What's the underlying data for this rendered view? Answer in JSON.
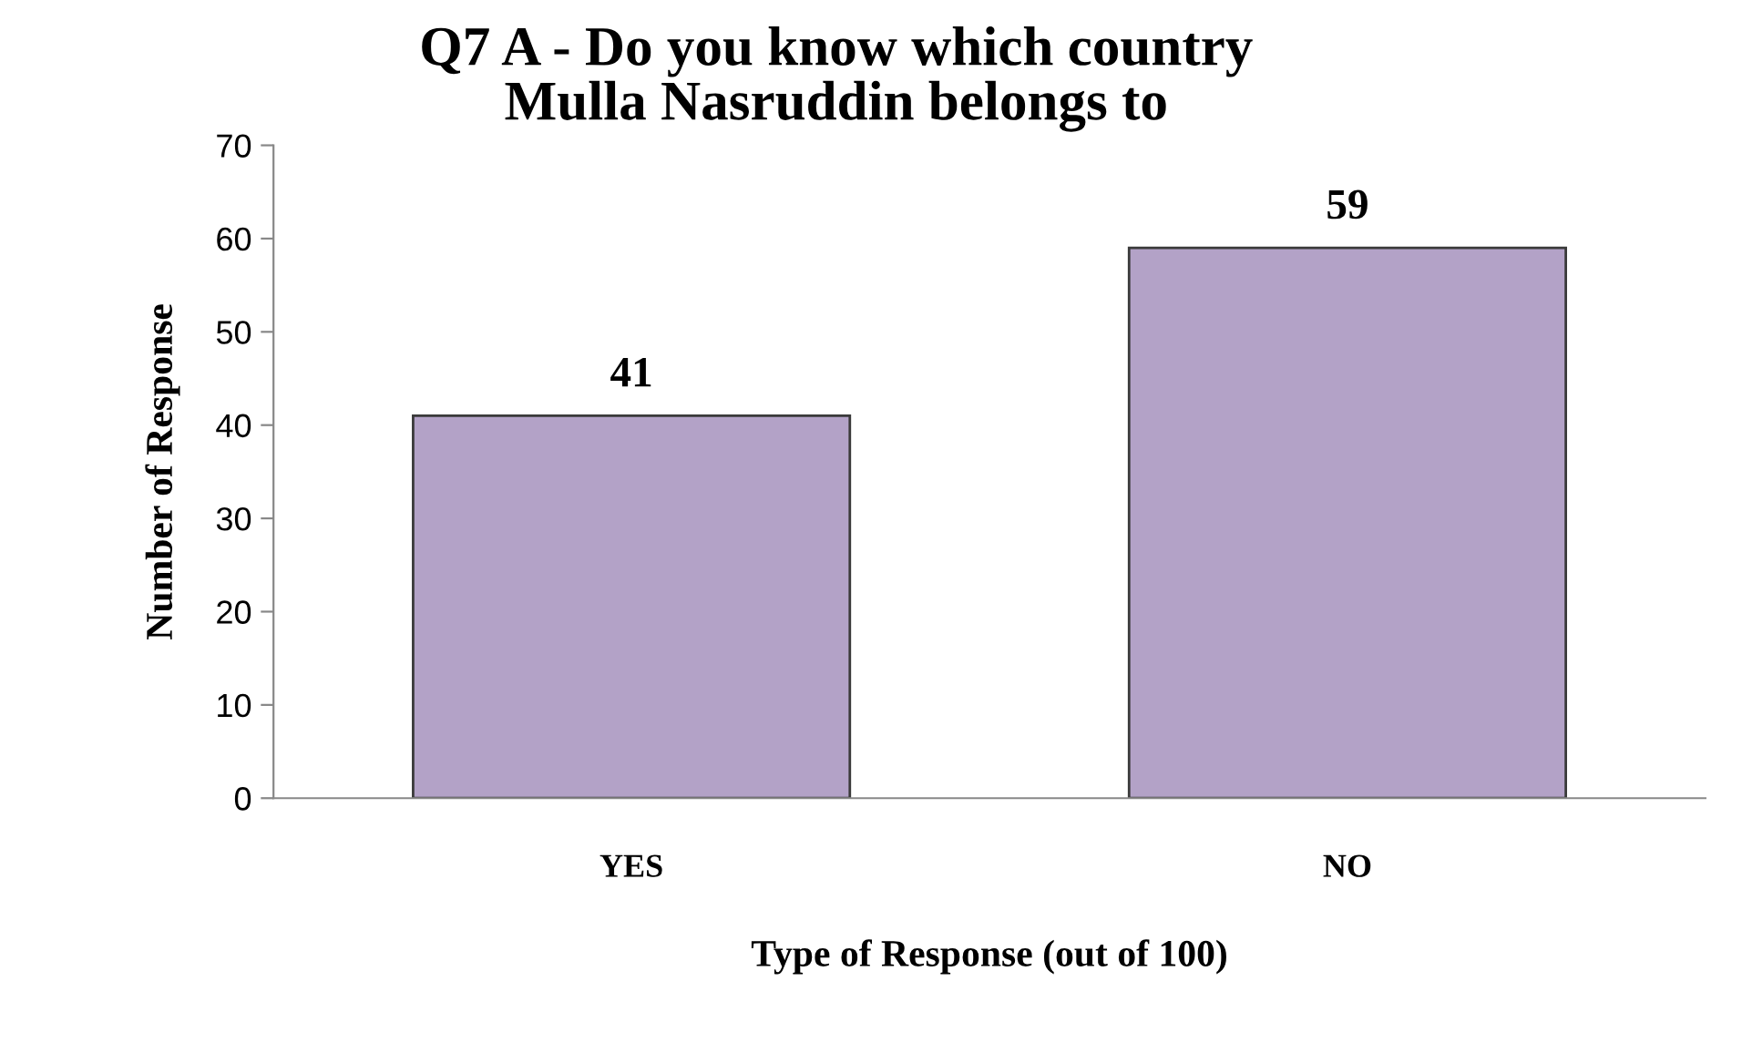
{
  "chart_data": {
    "type": "bar",
    "title": "Q7 A - Do you know which country\nMulla Nasruddin belongs to",
    "xlabel": "Type of Response (out of 100)",
    "ylabel": "Number of Response",
    "categories": [
      "YES",
      "NO"
    ],
    "values": [
      41,
      59
    ],
    "color": "#b3a2c7",
    "ylim": [
      0,
      70
    ],
    "yticks": [
      0,
      10,
      20,
      30,
      40,
      50,
      60,
      70
    ],
    "grid": false,
    "data_labels": true
  }
}
